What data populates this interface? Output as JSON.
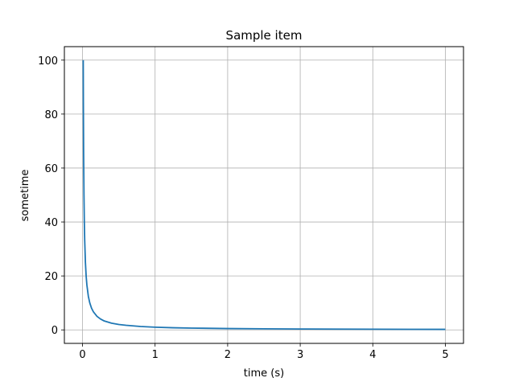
{
  "chart_data": {
    "type": "line",
    "title": "Sample item",
    "xlabel": "time (s)",
    "ylabel": "sometime",
    "xlim": [
      -0.25,
      5.25
    ],
    "ylim": [
      -5,
      105
    ],
    "xticks": [
      0,
      1,
      2,
      3,
      4,
      5
    ],
    "yticks": [
      0,
      20,
      40,
      60,
      80,
      100
    ],
    "xtick_labels": [
      "0",
      "1",
      "2",
      "3",
      "4",
      "5"
    ],
    "ytick_labels": [
      "0",
      "20",
      "40",
      "60",
      "80",
      "100"
    ],
    "grid": true,
    "series": [
      {
        "color": "#1f77b4",
        "x": [
          0.01,
          0.012,
          0.015,
          0.02,
          0.025,
          0.03,
          0.04,
          0.05,
          0.06,
          0.08,
          0.1,
          0.125,
          0.15,
          0.2,
          0.25,
          0.3,
          0.4,
          0.5,
          0.6,
          0.8,
          1.0,
          1.25,
          1.5,
          2.0,
          2.5,
          3.0,
          3.5,
          4.0,
          4.5,
          5.0
        ],
        "y": [
          100,
          83.3,
          66.7,
          50,
          40,
          33.3,
          25,
          20,
          16.7,
          12.5,
          10,
          8,
          6.7,
          5,
          4,
          3.3,
          2.5,
          2,
          1.7,
          1.25,
          1.0,
          0.8,
          0.67,
          0.5,
          0.4,
          0.33,
          0.29,
          0.25,
          0.22,
          0.2
        ]
      }
    ]
  }
}
